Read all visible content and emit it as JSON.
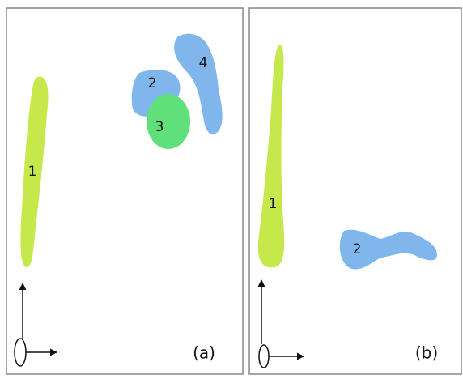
{
  "panels": [
    {
      "label": "(a)",
      "regions": [
        {
          "label": "1"
        },
        {
          "label": "2"
        },
        {
          "label": "3"
        },
        {
          "label": "4"
        }
      ]
    },
    {
      "label": "(b)",
      "regions": [
        {
          "label": "1"
        },
        {
          "label": "2"
        }
      ]
    }
  ]
}
